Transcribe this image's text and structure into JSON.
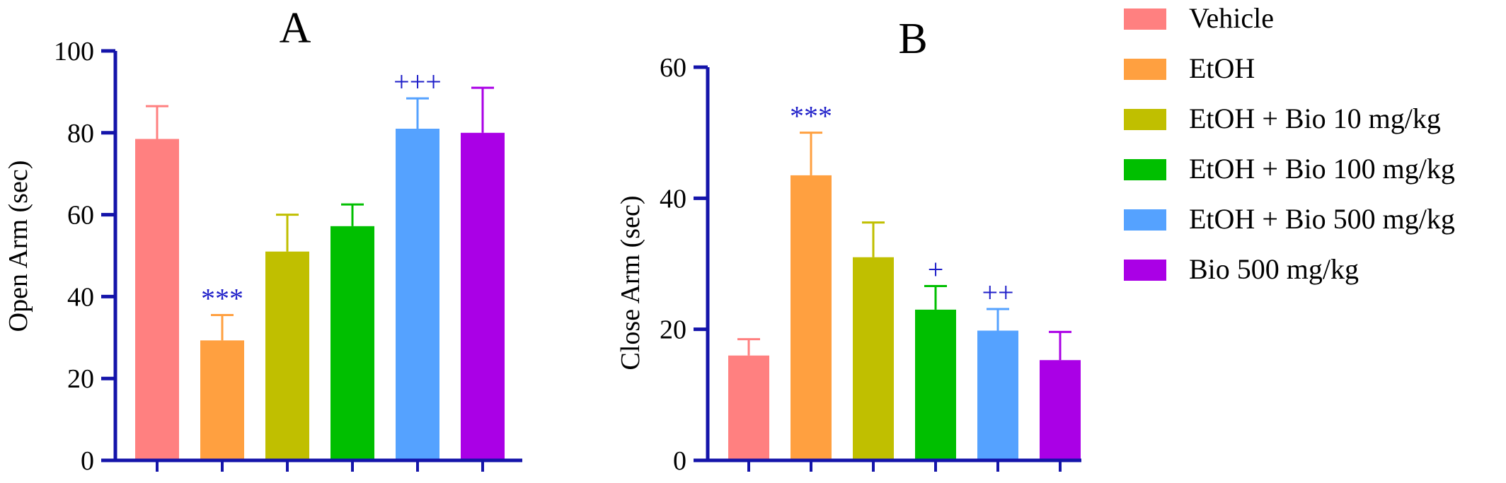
{
  "chart_data": [
    {
      "type": "bar",
      "title": "A",
      "ylabel": "Open Arm (sec)",
      "xlabel": "",
      "ylim": [
        0,
        100
      ],
      "yticks": [
        0,
        20,
        40,
        60,
        80,
        100
      ],
      "categories": [
        "Vehicle",
        "EtOH",
        "EtOH + Bio 10 mg/kg",
        "EtOH + Bio 100 mg/kg",
        "EtOH + Bio 500 mg/kg",
        "Bio 500 mg/kg"
      ],
      "values": [
        78.5,
        29.3,
        51.0,
        57.2,
        81.0,
        80.0
      ],
      "errors": [
        8.0,
        6.2,
        9.0,
        5.3,
        7.4,
        11.0
      ],
      "annotations": [
        "",
        "***",
        "",
        "",
        "+++",
        ""
      ]
    },
    {
      "type": "bar",
      "title": "B",
      "ylabel": "Close Arm (sec)",
      "xlabel": "",
      "ylim": [
        0,
        60
      ],
      "yticks": [
        0,
        20,
        40,
        60
      ],
      "categories": [
        "Vehicle",
        "EtOH",
        "EtOH + Bio 10 mg/kg",
        "EtOH + Bio 100 mg/kg",
        "EtOH + Bio 500 mg/kg",
        "Bio 500 mg/kg"
      ],
      "values": [
        16.0,
        43.5,
        31.0,
        23.0,
        19.8,
        15.3
      ],
      "errors": [
        2.5,
        6.5,
        5.3,
        3.6,
        3.3,
        4.3
      ],
      "annotations": [
        "",
        "***",
        "",
        "+",
        "++",
        ""
      ]
    }
  ],
  "legend": {
    "placement": "right",
    "items": [
      {
        "label": "Vehicle",
        "color": "#ff8080"
      },
      {
        "label": "EtOH",
        "color": "#ffa040"
      },
      {
        "label": "EtOH + Bio 10 mg/kg",
        "color": "#c0bf00"
      },
      {
        "label": "EtOH + Bio 100 mg/kg",
        "color": "#00bf00"
      },
      {
        "label": "EtOH + Bio 500 mg/kg",
        "color": "#55a2ff"
      },
      {
        "label": "Bio 500 mg/kg",
        "color": "#aa00e6"
      }
    ]
  },
  "colors": {
    "axis": "#1414aa",
    "annotation": "#1f1fc9"
  }
}
